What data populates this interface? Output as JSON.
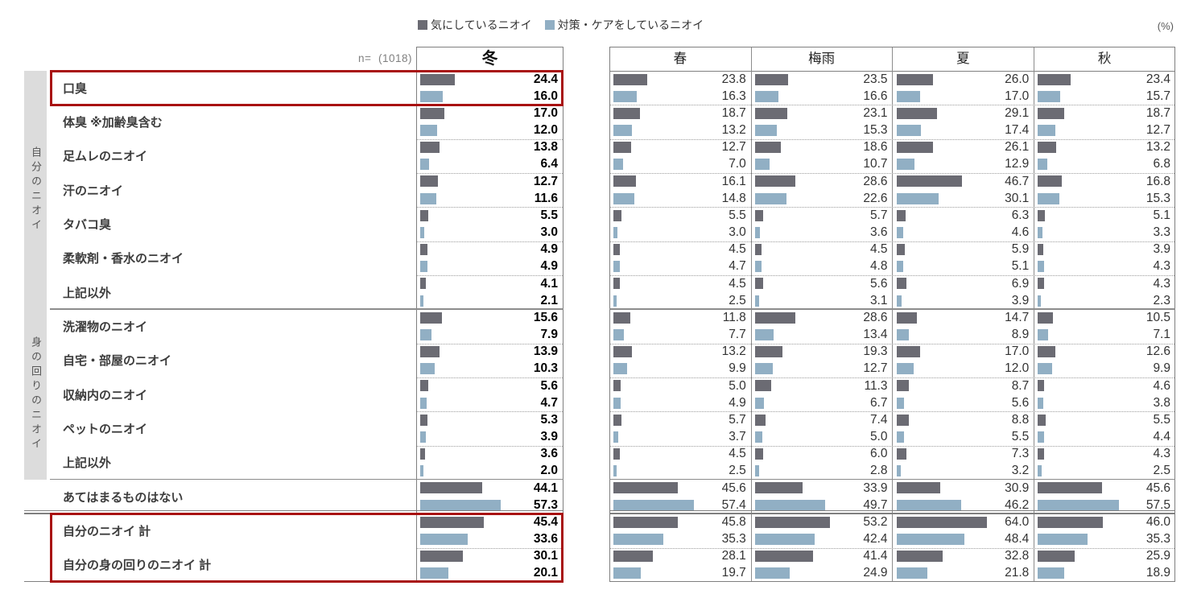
{
  "unit_label": "(%)",
  "n_prefix": "n=",
  "n_value": "(1018)",
  "colors": {
    "concerned_bar": "#6b6b73",
    "care_bar": "#91afc4",
    "highlight_border": "#a81111",
    "sidebar_bg": "#dcdcdc"
  },
  "chart_data": {
    "type": "bar",
    "orientation": "horizontal",
    "unit": "%",
    "xmax": 100,
    "n": 1018,
    "columns": [
      "冬",
      "春",
      "梅雨",
      "夏",
      "秋"
    ],
    "series": [
      {
        "name": "気にしているニオイ",
        "color": "#6b6b73"
      },
      {
        "name": "対策・ケアをしているニオイ",
        "color": "#91afc4"
      }
    ],
    "value_order_note": "values per row = [冬,春,梅雨,夏,秋], each [気にしている, 対策・ケアをしている]",
    "groups": [
      {
        "label": "自分のニオイ",
        "rows": [
          {
            "label": "口臭",
            "highlight": true,
            "values": [
              [
                24.4,
                16.0
              ],
              [
                23.8,
                16.3
              ],
              [
                23.5,
                16.6
              ],
              [
                26.0,
                17.0
              ],
              [
                23.4,
                15.7
              ]
            ]
          },
          {
            "label": "体臭 ※加齢臭含む",
            "values": [
              [
                17.0,
                12.0
              ],
              [
                18.7,
                13.2
              ],
              [
                23.1,
                15.3
              ],
              [
                29.1,
                17.4
              ],
              [
                18.7,
                12.7
              ]
            ]
          },
          {
            "label": "足ムレのニオイ",
            "values": [
              [
                13.8,
                6.4
              ],
              [
                12.7,
                7.0
              ],
              [
                18.6,
                10.7
              ],
              [
                26.1,
                12.9
              ],
              [
                13.2,
                6.8
              ]
            ]
          },
          {
            "label": "汗のニオイ",
            "values": [
              [
                12.7,
                11.6
              ],
              [
                16.1,
                14.8
              ],
              [
                28.6,
                22.6
              ],
              [
                46.7,
                30.1
              ],
              [
                16.8,
                15.3
              ]
            ]
          },
          {
            "label": "タバコ臭",
            "values": [
              [
                5.5,
                3.0
              ],
              [
                5.5,
                3.0
              ],
              [
                5.7,
                3.6
              ],
              [
                6.3,
                4.6
              ],
              [
                5.1,
                3.3
              ]
            ]
          },
          {
            "label": "柔軟剤・香水のニオイ",
            "values": [
              [
                4.9,
                4.9
              ],
              [
                4.5,
                4.7
              ],
              [
                4.5,
                4.8
              ],
              [
                5.9,
                5.1
              ],
              [
                3.9,
                4.3
              ]
            ]
          },
          {
            "label": "上記以外",
            "values": [
              [
                4.1,
                2.1
              ],
              [
                4.5,
                2.5
              ],
              [
                5.6,
                3.1
              ],
              [
                6.9,
                3.9
              ],
              [
                4.3,
                2.3
              ]
            ]
          }
        ]
      },
      {
        "label": "身の回りのニオイ",
        "rows": [
          {
            "label": "洗濯物のニオイ",
            "values": [
              [
                15.6,
                7.9
              ],
              [
                11.8,
                7.7
              ],
              [
                28.6,
                13.4
              ],
              [
                14.7,
                8.9
              ],
              [
                10.5,
                7.1
              ]
            ]
          },
          {
            "label": "自宅・部屋のニオイ",
            "values": [
              [
                13.9,
                10.3
              ],
              [
                13.2,
                9.9
              ],
              [
                19.3,
                12.7
              ],
              [
                17.0,
                12.0
              ],
              [
                12.6,
                9.9
              ]
            ]
          },
          {
            "label": "収納内のニオイ",
            "values": [
              [
                5.6,
                4.7
              ],
              [
                5.0,
                4.9
              ],
              [
                11.3,
                6.7
              ],
              [
                8.7,
                5.6
              ],
              [
                4.6,
                3.8
              ]
            ]
          },
          {
            "label": "ペットのニオイ",
            "values": [
              [
                5.3,
                3.9
              ],
              [
                5.7,
                3.7
              ],
              [
                7.4,
                5.0
              ],
              [
                8.8,
                5.5
              ],
              [
                5.5,
                4.4
              ]
            ]
          },
          {
            "label": "上記以外",
            "values": [
              [
                3.6,
                2.0
              ],
              [
                4.5,
                2.5
              ],
              [
                6.0,
                2.8
              ],
              [
                7.3,
                3.2
              ],
              [
                4.3,
                2.5
              ]
            ]
          }
        ]
      },
      {
        "label": "",
        "rows": [
          {
            "label": "あてはまるものはない",
            "values": [
              [
                44.1,
                57.3
              ],
              [
                45.6,
                57.4
              ],
              [
                33.9,
                49.7
              ],
              [
                30.9,
                46.2
              ],
              [
                45.6,
                57.5
              ]
            ]
          }
        ]
      },
      {
        "label": "",
        "rows": [
          {
            "label": "自分のニオイ 計",
            "highlight": true,
            "values": [
              [
                45.4,
                33.6
              ],
              [
                45.8,
                35.3
              ],
              [
                53.2,
                42.4
              ],
              [
                64.0,
                48.4
              ],
              [
                46.0,
                35.3
              ]
            ]
          },
          {
            "label": "自分の身の回りのニオイ 計",
            "highlight": true,
            "values": [
              [
                30.1,
                20.1
              ],
              [
                28.1,
                19.7
              ],
              [
                41.4,
                24.9
              ],
              [
                32.8,
                21.8
              ],
              [
                25.9,
                18.9
              ]
            ]
          }
        ]
      }
    ]
  }
}
